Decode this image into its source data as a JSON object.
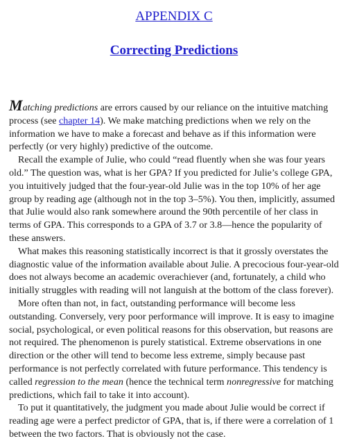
{
  "header": {
    "appendix_title": "APPENDIX C",
    "chapter_title": "Correcting Predictions"
  },
  "paragraphs": {
    "p1": {
      "dropcap": "M",
      "term": "atching predictions",
      "text_a": " are errors caused by our reliance on the intuitive matching process (see ",
      "link": "chapter 14",
      "text_b": "). We make matching predictions when we rely on the information we have to make a forecast and behave as if this information were perfectly (or very highly) predictive of the outcome."
    },
    "p2": "Recall the example of Julie, who could “read fluently when she was four years old.” The question was, what is her GPA? If you predicted for Julie’s college GPA, you intuitively judged that the four-year-old Julie was in the top 10% of her age group by reading age (although not in the top 3–5%). You then, implicitly, assumed that Julie would also rank somewhere around the 90th percentile of her class in terms of GPA. This corresponds to a GPA of 3.7 or 3.8—hence the popularity of these answers.",
    "p3": "What makes this reasoning statistically incorrect is that it grossly overstates the diagnostic value of the information available about Julie. A precocious four-year-old does not always become an academic overachiever (and, fortunately, a child who initially struggles with reading will not languish at the bottom of the class forever).",
    "p4": {
      "text_a": "More often than not, in fact, outstanding performance will become less outstanding. Conversely, very poor performance will improve. It is easy to imagine social, psychological, or even political reasons for this observation, but reasons are not required. The phenomenon is purely statistical. Extreme observations in one direction or the other will tend to become less extreme, simply because past performance is not perfectly correlated with future performance. This tendency is called ",
      "term_a": "regression to the mean",
      "text_b": " (hence the technical term ",
      "term_b": "nonregressive",
      "text_c": " for matching predictions, which fail to take it into account)."
    },
    "p5": "To put it quantitatively, the judgment you made about Julie would be correct if reading age were a perfect predictor of GPA, that is, if there were a correlation of 1 between the two factors. That is obviously not the case."
  }
}
